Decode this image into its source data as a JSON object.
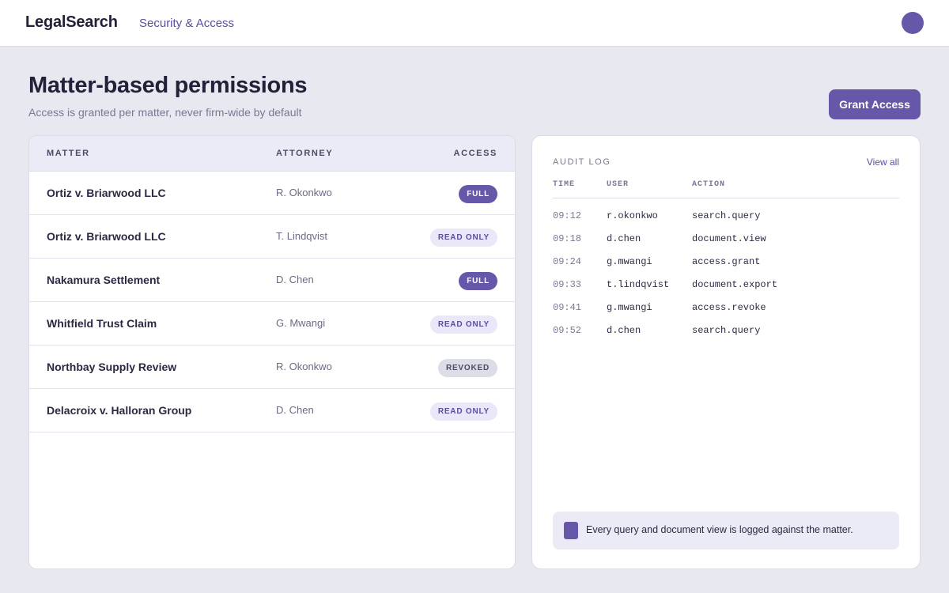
{
  "header": {
    "brand": "LegalSearch",
    "nav_link": "Security & Access",
    "avatar_icon": "user-avatar-icon"
  },
  "page": {
    "title": "Matter-based permissions",
    "subtitle": "Access is granted per matter, never firm-wide by default",
    "grant_button": "Grant Access"
  },
  "matters": {
    "columns": {
      "matter": "MATTER",
      "attorney": "ATTORNEY",
      "access": "ACCESS"
    },
    "rows": [
      {
        "matter": "Ortiz v. Briarwood LLC",
        "attorney": "R. Okonkwo",
        "access": "FULL",
        "status": "full"
      },
      {
        "matter": "Ortiz v. Briarwood LLC",
        "attorney": "T. Lindqvist",
        "access": "READ ONLY",
        "status": "readonly"
      },
      {
        "matter": "Nakamura Settlement",
        "attorney": "D. Chen",
        "access": "FULL",
        "status": "full"
      },
      {
        "matter": "Whitfield Trust Claim",
        "attorney": "G. Mwangi",
        "access": "READ ONLY",
        "status": "readonly"
      },
      {
        "matter": "Northbay Supply Review",
        "attorney": "R. Okonkwo",
        "access": "REVOKED",
        "status": "revoked"
      },
      {
        "matter": "Delacroix v. Halloran Group",
        "attorney": "D. Chen",
        "access": "READ ONLY",
        "status": "readonly"
      }
    ]
  },
  "audit": {
    "title": "AUDIT LOG",
    "view_all": "View all",
    "columns": {
      "time": "TIME",
      "user": "USER",
      "action": "ACTION"
    },
    "rows": [
      {
        "time": "09:12",
        "user": "r.okonkwo",
        "action": "search.query"
      },
      {
        "time": "09:18",
        "user": "d.chen",
        "action": "document.view"
      },
      {
        "time": "09:24",
        "user": "g.mwangi",
        "action": "access.grant"
      },
      {
        "time": "09:33",
        "user": "t.lindqvist",
        "action": "document.export"
      },
      {
        "time": "09:41",
        "user": "g.mwangi",
        "action": "access.revoke"
      },
      {
        "time": "09:52",
        "user": "d.chen",
        "action": "search.query"
      }
    ],
    "note": "Every query and document view is logged against the matter.",
    "note_icon": "document-icon"
  },
  "colors": {
    "accent": "#6757a8",
    "background": "#e8e8f0",
    "badge_readonly_bg": "#e9e7f8",
    "badge_revoked_bg": "#dcdde6"
  }
}
